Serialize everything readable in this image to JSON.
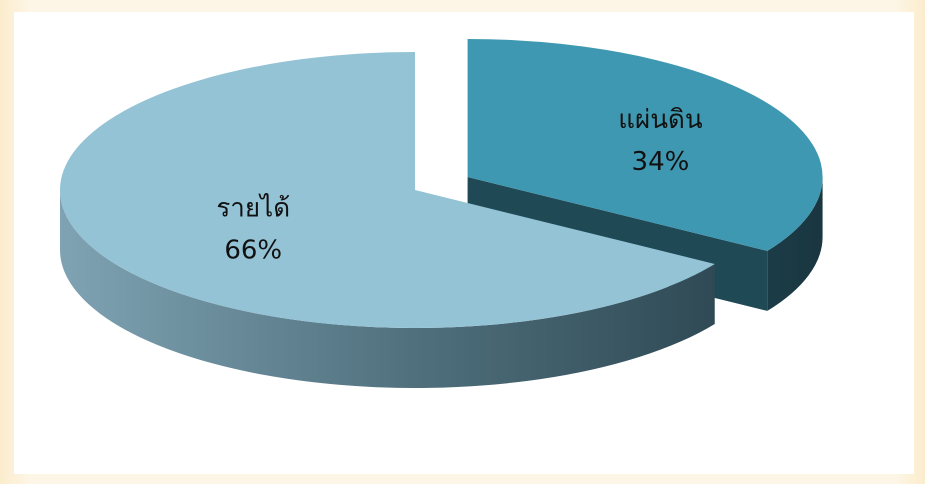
{
  "chart_data": {
    "type": "pie",
    "style": "3d-exploded",
    "slices": [
      {
        "label": "แผ่นดิน",
        "value": 34,
        "value_label": "34%",
        "color": "#3f98b1",
        "side_color": "#1f4955",
        "exploded": true
      },
      {
        "label": "รายได้",
        "value": 66,
        "value_label": "66%",
        "color": "#93c3d5",
        "side_color": "#4f7583",
        "exploded": false
      }
    ],
    "legend": "none"
  }
}
